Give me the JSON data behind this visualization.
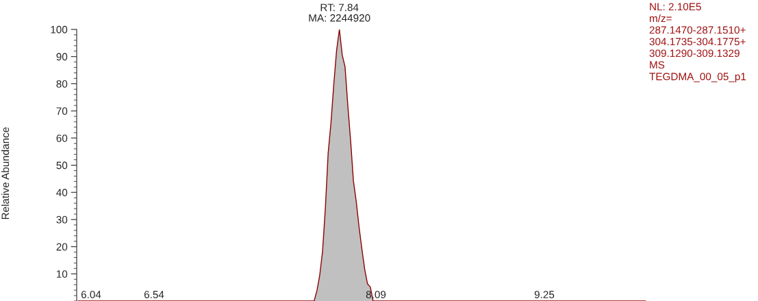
{
  "chart_data": {
    "type": "area",
    "ylabel": "Relative Abundance",
    "categories": [
      null,
      null,
      null,
      null,
      null,
      null,
      null,
      null,
      null,
      null,
      null,
      null,
      null,
      null,
      null,
      null,
      null,
      null,
      null,
      null,
      null,
      null,
      null,
      null,
      null,
      null,
      null,
      null,
      null,
      null,
      null,
      null,
      null,
      null,
      null,
      null,
      null,
      null,
      null,
      null,
      null,
      null,
      null,
      null,
      null,
      null,
      null,
      null,
      null,
      null,
      null,
      null,
      null,
      null,
      null,
      null,
      null,
      null,
      null,
      null,
      null,
      null,
      null,
      null,
      null,
      null,
      null,
      null,
      null,
      null,
      null,
      null,
      null,
      null,
      null,
      null,
      null,
      null,
      null,
      null,
      null,
      null,
      null,
      null,
      null,
      null,
      null,
      null,
      null,
      null,
      null,
      null,
      null,
      null,
      null,
      null,
      null,
      null,
      null,
      null,
      null,
      null,
      null,
      null,
      null,
      null,
      null,
      null,
      null,
      null,
      null,
      null,
      null,
      null,
      null,
      null,
      null,
      null,
      null,
      null,
      null,
      null,
      null,
      null,
      null,
      null,
      null,
      null,
      null,
      null,
      null,
      null,
      null,
      null,
      null,
      null,
      null,
      null,
      null,
      null,
      null,
      null,
      null,
      null,
      null,
      null,
      null,
      null,
      null,
      null,
      null,
      null,
      null,
      null,
      null,
      null,
      null,
      null,
      null,
      null,
      null,
      null,
      null,
      null,
      null,
      null,
      null,
      null,
      null,
      null,
      null,
      null,
      null,
      null,
      null,
      null,
      null,
      null,
      null,
      null,
      null,
      null,
      null,
      null,
      null,
      null,
      null,
      null,
      null,
      null,
      null,
      null,
      null,
      null,
      null,
      null,
      null,
      null,
      null,
      null,
      null,
      null,
      null
    ],
    "ylim": [
      0,
      100
    ],
    "yticks": [
      10,
      20,
      30,
      40,
      50,
      60,
      70,
      80,
      90,
      100
    ],
    "tick_labels": "y",
    "grid": false,
    "series": [
      {
        "color": "#8b0000",
        "values": [
          0,
          0,
          0,
          0,
          0,
          0,
          0,
          0,
          0,
          0,
          0,
          0,
          0,
          0,
          0,
          0,
          0,
          0,
          0,
          0,
          0,
          0,
          0,
          0,
          0,
          0,
          0,
          0,
          0,
          0,
          0,
          0,
          0,
          0,
          0,
          0,
          0,
          0,
          0,
          0,
          0,
          0,
          0,
          0,
          0,
          0,
          0,
          0,
          0,
          0,
          0,
          0,
          0,
          0,
          0,
          0,
          0,
          0,
          0,
          0,
          0,
          0,
          0,
          0,
          0,
          0,
          0,
          0,
          0,
          0,
          0,
          0,
          0,
          0,
          0,
          0,
          0,
          0,
          0,
          0,
          0,
          0,
          0,
          0,
          0,
          3.8,
          9.5,
          18.3,
          34.1,
          54.5,
          65.6,
          79.8,
          92.3,
          100,
          90.6,
          86.3,
          71.9,
          58.9,
          44.1,
          36.6,
          27.2,
          19.2,
          11.7,
          6.3,
          5.2,
          0,
          0,
          0,
          0,
          0,
          0,
          0,
          0,
          0,
          0,
          0,
          0,
          0,
          0,
          0,
          0,
          0,
          0,
          0,
          0,
          0,
          0,
          0,
          0,
          0,
          0,
          0,
          0,
          0,
          0,
          0,
          0,
          0,
          0,
          0,
          0,
          0,
          0,
          0,
          0,
          0,
          0,
          0,
          0,
          0,
          0,
          0,
          0,
          0,
          0,
          0,
          0,
          0,
          0,
          0,
          0,
          0,
          0,
          0,
          0,
          0,
          0,
          0,
          0,
          0,
          0,
          0,
          0,
          0,
          0,
          0,
          0,
          0,
          0,
          0,
          0,
          0,
          0,
          0,
          0,
          0,
          0,
          0,
          0,
          0,
          0,
          0,
          0,
          0,
          0,
          0,
          0,
          0,
          0,
          0,
          0,
          0,
          0
        ]
      }
    ],
    "annotations": [
      "RT: 7.84\nMA: 2244920",
      "6.04",
      "6.54",
      "8.09",
      "9.25",
      "NL: 2.10E5\nm/z=\n287.1470-287.1510+\n304.1735-304.1775+\n309.1290-309.1329\nMS\nTEGDMA_00_05_p1"
    ]
  }
}
